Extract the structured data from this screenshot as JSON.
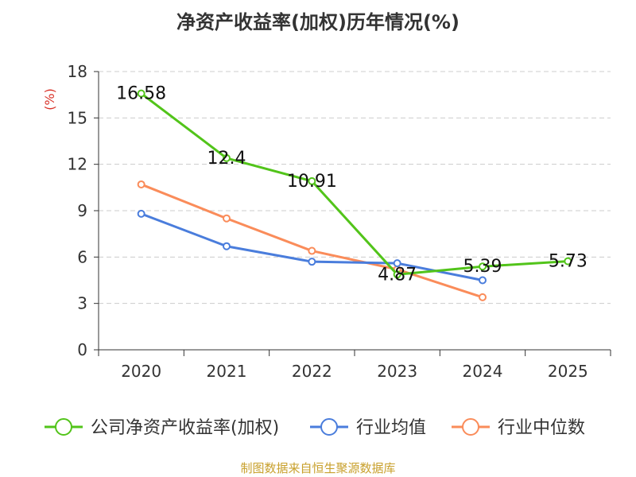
{
  "colors": {
    "roe": "#52c41a",
    "industry_avg": "#4a7ddc",
    "industry_median": "#fa8c5a",
    "axis": "#333333",
    "grid": "#cccccc",
    "unit": "#d9342b",
    "source": "#c8a02c"
  },
  "chart_data": {
    "type": "line",
    "title": "净资产收益率(加权)历年情况(%)",
    "ylabel": "(%)",
    "xlabel": "",
    "categories": [
      "2020",
      "2021",
      "2022",
      "2023",
      "2024",
      "2025"
    ],
    "ylim": [
      0,
      18
    ],
    "yticks": [
      0,
      3,
      6,
      9,
      12,
      15,
      18
    ],
    "grid": true,
    "legend_position": "bottom",
    "series": [
      {
        "name": "公司净资产收益率(加权)",
        "color_key": "roe",
        "values": [
          16.58,
          12.4,
          10.91,
          4.87,
          5.39,
          5.73
        ],
        "labels": [
          "16.58",
          "12.4",
          "10.91",
          "4.87",
          "5.39",
          "5.73"
        ],
        "show_labels": true
      },
      {
        "name": "行业均值",
        "color_key": "industry_avg",
        "values": [
          8.8,
          6.7,
          5.7,
          5.6,
          4.5,
          null
        ],
        "show_labels": false
      },
      {
        "name": "行业中位数",
        "color_key": "industry_median",
        "values": [
          10.7,
          8.5,
          6.4,
          5.2,
          3.4,
          null
        ],
        "show_labels": false
      }
    ]
  },
  "source_text": "制图数据来自恒生聚源数据库"
}
